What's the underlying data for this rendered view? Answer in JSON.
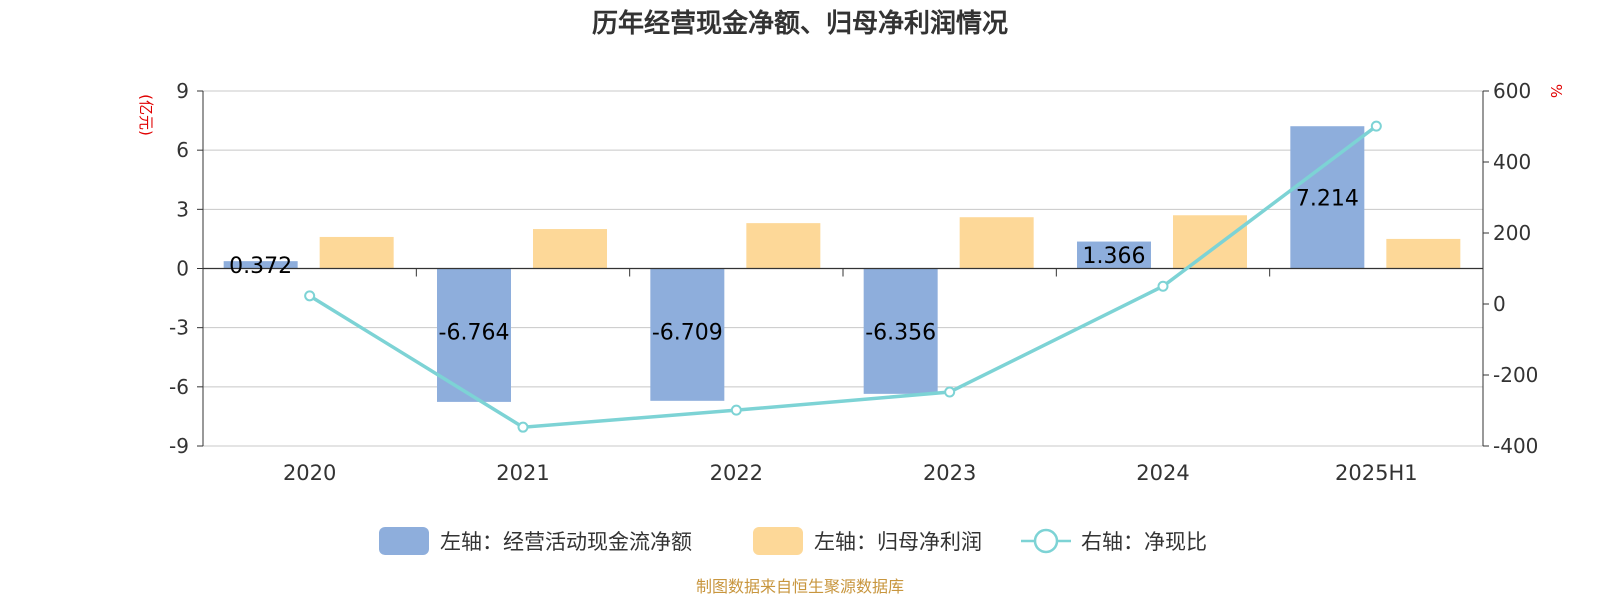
{
  "chart_data": {
    "type": "bar",
    "title": "历年经营现金净额、归母净利润情况",
    "categories": [
      "2020",
      "2021",
      "2022",
      "2023",
      "2024",
      "2025H1"
    ],
    "left_axis": {
      "unit": "(亿元)",
      "ylim": [
        -9,
        9
      ],
      "ticks": [
        9,
        6,
        3,
        0,
        -3,
        -6,
        -9
      ]
    },
    "right_axis": {
      "unit": "%",
      "ylim": [
        -400,
        600
      ],
      "ticks": [
        600,
        400,
        200,
        0,
        -200,
        -400
      ]
    },
    "grid": true,
    "legend_position": "bottom",
    "series": [
      {
        "name": "左轴：经营活动现金流净额",
        "type": "bar",
        "axis": "left",
        "color": "#8eaedc",
        "values": [
          0.372,
          -6.764,
          -6.709,
          -6.356,
          1.366,
          7.214
        ],
        "labels": [
          "0.372",
          "-6.764",
          "-6.709",
          "-6.356",
          "1.366",
          "7.214"
        ]
      },
      {
        "name": "左轴：归母净利润",
        "type": "bar",
        "axis": "left",
        "color": "#fdd898",
        "values": [
          1.6,
          2.0,
          2.3,
          2.6,
          2.7,
          1.5
        ]
      },
      {
        "name": "右轴：净现比",
        "type": "line",
        "axis": "right",
        "color": "#7dd3d5",
        "values": [
          23,
          -347,
          -299,
          -248,
          50,
          501
        ]
      }
    ]
  },
  "footer": {
    "source": "制图数据来自恒生聚源数据库"
  }
}
